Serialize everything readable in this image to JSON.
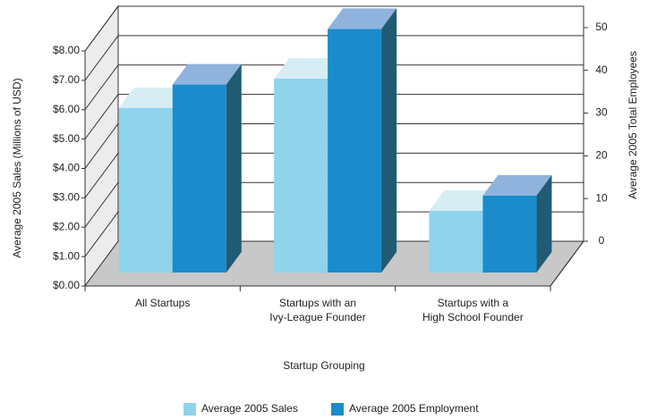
{
  "chart_data": {
    "type": "bar3d",
    "xlabel": "Startup Grouping",
    "ylabel": "Average 2005 Sales (Millions of USD)",
    "y2label": "Average 2005 Total Employees",
    "categories": [
      [
        "All Startups"
      ],
      [
        "Startups with an",
        "Ivy-League Founder"
      ],
      [
        "Startups with a",
        "High School Founder"
      ]
    ],
    "series": [
      {
        "name": "Average 2005 Sales",
        "color": "#8fd3ec",
        "top_color": "#d6eef3",
        "values": [
          5.6,
          6.6,
          2.1
        ]
      },
      {
        "name": "Average 2005 Employment",
        "color": "#1a8ccc",
        "top_color": "#8fb3dc",
        "side_color": "#215b73",
        "axis": "y2",
        "values": [
          44,
          57,
          18
        ]
      }
    ],
    "ylim": [
      0,
      8
    ],
    "yticks": [
      {
        "value": 0,
        "label": "$0.00"
      },
      {
        "value": 1,
        "label": "$1.00"
      },
      {
        "value": 2,
        "label": "$2.00"
      },
      {
        "value": 3,
        "label": "$3.00"
      },
      {
        "value": 4,
        "label": "$4.00"
      },
      {
        "value": 5,
        "label": "$5.00"
      },
      {
        "value": 6,
        "label": "$6.00"
      },
      {
        "value": 7,
        "label": "$7.00"
      },
      {
        "value": 8,
        "label": "$8.00"
      }
    ],
    "y2lim": [
      0,
      55
    ],
    "y2ticks": [
      0,
      10,
      20,
      30,
      40,
      50
    ],
    "grid": true,
    "legend": "bottom"
  }
}
